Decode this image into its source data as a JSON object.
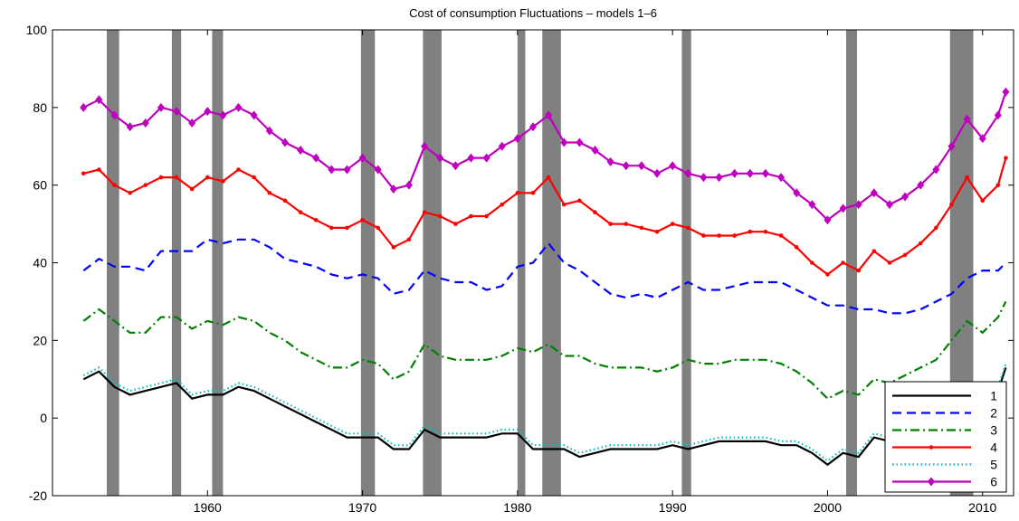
{
  "chart_data": {
    "type": "line",
    "title": "Cost of consumption Fluctuations – models 1–6",
    "x": [
      1952,
      1953,
      1954,
      1955,
      1956,
      1957,
      1958,
      1959,
      1960,
      1961,
      1962,
      1963,
      1964,
      1965,
      1966,
      1967,
      1968,
      1969,
      1970,
      1971,
      1972,
      1973,
      1974,
      1975,
      1976,
      1977,
      1978,
      1979,
      1980,
      1981,
      1982,
      1983,
      1984,
      1985,
      1986,
      1987,
      1988,
      1989,
      1990,
      1991,
      1992,
      1993,
      1994,
      1995,
      1996,
      1997,
      1998,
      1999,
      2000,
      2001,
      2002,
      2003,
      2004,
      2005,
      2006,
      2007,
      2008,
      2009,
      2010,
      2011,
      2011.5
    ],
    "series": [
      {
        "name": "1",
        "color": "#000000",
        "dash": "solid",
        "marker": "none",
        "values": [
          10,
          12,
          8,
          6,
          7,
          8,
          9,
          5,
          6,
          6,
          8,
          7,
          5,
          3,
          1,
          -1,
          -3,
          -5,
          -5,
          -5,
          -8,
          -8,
          -3,
          -5,
          -5,
          -5,
          -5,
          -4,
          -4,
          -8,
          -8,
          -8,
          -10,
          -9,
          -8,
          -8,
          -8,
          -8,
          -7,
          -8,
          -7,
          -6,
          -6,
          -6,
          -6,
          -7,
          -7,
          -9,
          -12,
          -9,
          -10,
          -5,
          -6,
          -5,
          -4,
          -3,
          -2,
          5,
          2,
          7,
          13
        ]
      },
      {
        "name": "2",
        "color": "#0000ff",
        "dash": "dashed",
        "marker": "none",
        "values": [
          38,
          41,
          39,
          39,
          38,
          43,
          43,
          43,
          46,
          45,
          46,
          46,
          44,
          41,
          40,
          39,
          37,
          36,
          37,
          36,
          32,
          33,
          38,
          36,
          35,
          35,
          33,
          34,
          39,
          40,
          45,
          40,
          38,
          35,
          32,
          31,
          32,
          31,
          33,
          35,
          33,
          33,
          34,
          35,
          35,
          35,
          33,
          31,
          29,
          29,
          28,
          28,
          27,
          27,
          28,
          30,
          32,
          36,
          38,
          38,
          40
        ]
      },
      {
        "name": "3",
        "color": "#008000",
        "dash": "dashdot",
        "marker": "none",
        "values": [
          25,
          28,
          25,
          22,
          22,
          26,
          26,
          23,
          25,
          24,
          26,
          25,
          22,
          20,
          17,
          15,
          13,
          13,
          15,
          14,
          10,
          12,
          19,
          16,
          15,
          15,
          15,
          16,
          18,
          17,
          19,
          16,
          16,
          14,
          13,
          13,
          13,
          12,
          13,
          15,
          14,
          14,
          15,
          15,
          15,
          14,
          12,
          9,
          5,
          7,
          6,
          10,
          9,
          11,
          13,
          15,
          20,
          25,
          22,
          26,
          30
        ]
      },
      {
        "name": "4",
        "color": "#ff0000",
        "dash": "solid",
        "marker": "dot",
        "values": [
          63,
          64,
          60,
          58,
          60,
          62,
          62,
          59,
          62,
          61,
          64,
          62,
          58,
          56,
          53,
          51,
          49,
          49,
          51,
          49,
          44,
          46,
          53,
          52,
          50,
          52,
          52,
          55,
          58,
          58,
          62,
          55,
          56,
          53,
          50,
          50,
          49,
          48,
          50,
          49,
          47,
          47,
          47,
          48,
          48,
          47,
          44,
          40,
          37,
          40,
          38,
          43,
          40,
          42,
          45,
          49,
          55,
          62,
          56,
          60,
          67
        ]
      },
      {
        "name": "5",
        "color": "#00bfbf",
        "dash": "dotted",
        "marker": "none",
        "values": [
          11,
          13,
          9,
          7,
          8,
          9,
          10,
          6,
          7,
          7,
          9,
          8,
          6,
          4,
          2,
          0,
          -2,
          -4,
          -4,
          -4,
          -7,
          -7,
          -2,
          -4,
          -4,
          -4,
          -4,
          -3,
          -3,
          -7,
          -7,
          -7,
          -9,
          -8,
          -7,
          -7,
          -7,
          -7,
          -6,
          -7,
          -6,
          -5,
          -5,
          -5,
          -5,
          -6,
          -6,
          -8,
          -11,
          -8,
          -9,
          -4,
          -5,
          -4,
          -3,
          -2,
          -1,
          6,
          3,
          8,
          14
        ]
      },
      {
        "name": "6",
        "color": "#bf00bf",
        "dash": "solid",
        "marker": "diamond",
        "values": [
          80,
          82,
          78,
          75,
          76,
          80,
          79,
          76,
          79,
          78,
          80,
          78,
          74,
          71,
          69,
          67,
          64,
          64,
          67,
          64,
          59,
          60,
          70,
          67,
          65,
          67,
          67,
          70,
          72,
          75,
          78,
          71,
          71,
          69,
          66,
          65,
          65,
          63,
          65,
          63,
          62,
          62,
          63,
          63,
          63,
          62,
          58,
          55,
          51,
          54,
          55,
          58,
          55,
          57,
          60,
          64,
          70,
          77,
          72,
          78,
          84
        ]
      }
    ],
    "recessions": [
      [
        1953.5,
        1954.3
      ],
      [
        1957.7,
        1958.3
      ],
      [
        1960.3,
        1961.0
      ],
      [
        1969.9,
        1970.8
      ],
      [
        1973.9,
        1975.1
      ],
      [
        1980.0,
        1980.5
      ],
      [
        1981.6,
        1982.8
      ],
      [
        1990.6,
        1991.2
      ],
      [
        2001.2,
        2001.9
      ],
      [
        2007.9,
        2009.4
      ]
    ],
    "recession_color": "#808080",
    "xlim": [
      1950,
      2012
    ],
    "ylim": [
      -20,
      100
    ],
    "xticks": [
      1960,
      1970,
      1980,
      1990,
      2000,
      2010
    ],
    "yticks": [
      -20,
      0,
      20,
      40,
      60,
      80,
      100
    ],
    "legend": "lower right"
  }
}
